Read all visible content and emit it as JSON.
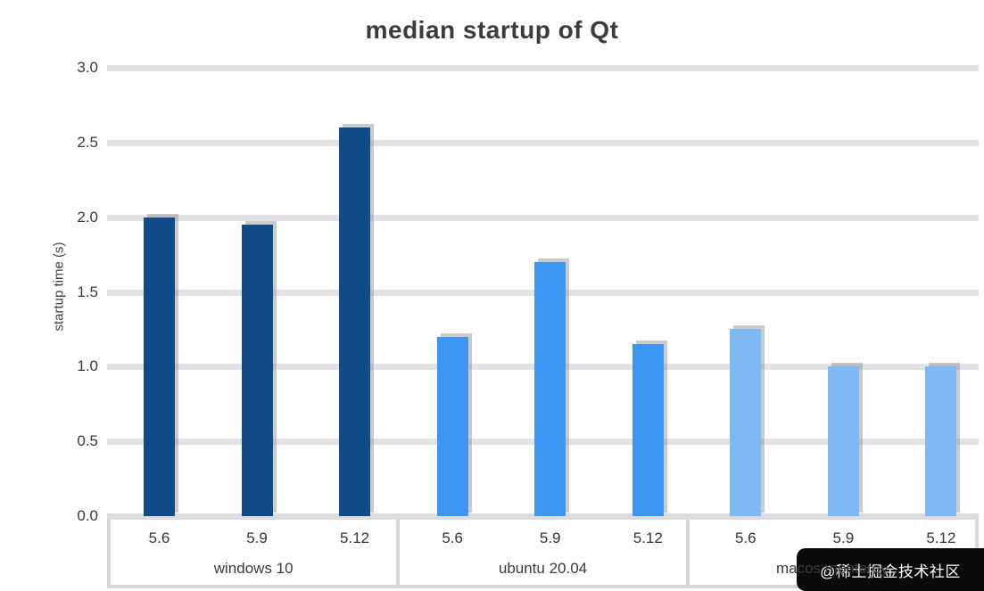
{
  "watermark": {
    "text": "@稀土掘金技术社区"
  },
  "colors": {
    "group1_bar": "#0f4c87",
    "group2_bar": "#3b97f3",
    "group3_bar": "#7db9f5",
    "gridline": "#e3e3e7",
    "axis_box_line": "#d6d6d9",
    "text": "#3a3a3e",
    "watermark_bg": "#0b0b0d",
    "watermark_text": "#ffffff"
  },
  "chart_data": {
    "type": "bar",
    "title": "median startup of Qt",
    "ylabel": "startup time (s)",
    "ylim": [
      0,
      3.0
    ],
    "ytick_step": 0.5,
    "ytick_labels_top_to_bottom": [
      "3.0",
      "2.5",
      "2.0",
      "1.5",
      "1.0",
      "0.5",
      "0.0"
    ],
    "grid": true,
    "legend": "none",
    "groups": [
      {
        "label": "windows 10",
        "categories": [
          "5.6",
          "5.9",
          "5.12"
        ],
        "values": [
          2.0,
          1.95,
          2.6
        ],
        "color": "#0f4c87"
      },
      {
        "label": "ubuntu 20.04",
        "categories": [
          "5.6",
          "5.9",
          "5.12"
        ],
        "values": [
          1.2,
          1.7,
          1.15
        ],
        "color": "#3b97f3"
      },
      {
        "label": "macos monterey",
        "categories": [
          "5.6",
          "5.9",
          "5.12"
        ],
        "values": [
          1.25,
          1.0,
          1.0
        ],
        "color": "#7db9f5"
      }
    ]
  }
}
